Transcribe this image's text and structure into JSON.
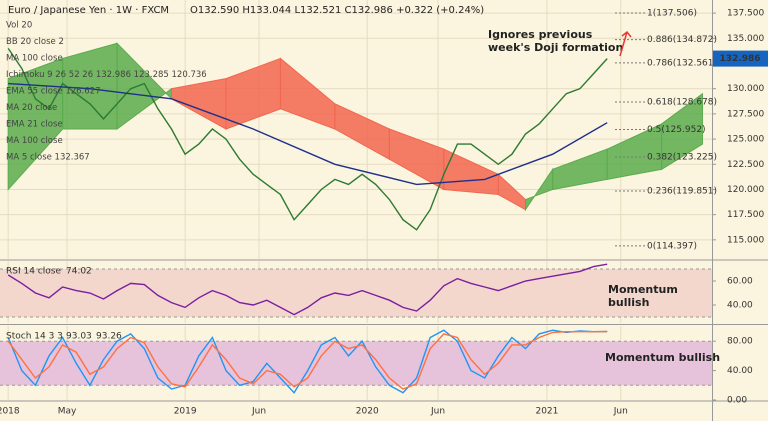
{
  "header": {
    "title": "Euro / Japanese Yen · 1W · FXCM",
    "ohlc": "O132.590 H133.044 L132.521 C132.986 +0.322 (+0.24%)",
    "indicators": [
      "Vol 20",
      "BB 20 close 2",
      "MA 100 close",
      "Ichimoku 9 26 52 26  132.986  123.285  120.736",
      "EMA 55 close  126.627",
      "MA 20 close",
      "EMA 21 close",
      "MA 100 close",
      "MA 5 close  132.367"
    ]
  },
  "chart_data": [
    {
      "type": "line",
      "annotation_lines": [
        "Ignores previous",
        "week's Doji formation"
      ],
      "xlim": [
        -2.4,
        206.8
      ],
      "ylim": [
        113.1,
        138.8
      ],
      "grid": true,
      "yticks": [
        {
          "value": 115,
          "label": "115.000"
        },
        {
          "value": 117.5,
          "label": "117.500"
        },
        {
          "value": 120,
          "label": "120.000"
        },
        {
          "value": 122.5,
          "label": "122.500"
        },
        {
          "value": 125,
          "label": "125.000"
        },
        {
          "value": 127.5,
          "label": "127.500"
        },
        {
          "value": 130,
          "label": "130.000"
        },
        {
          "value": 135,
          "label": "135.000"
        },
        {
          "value": 137.5,
          "label": "137.500"
        }
      ],
      "cloud": {
        "x": [
          0,
          16,
          32,
          48,
          64,
          80,
          96,
          112,
          128,
          144,
          152,
          160,
          176,
          192,
          204
        ],
        "span_a": [
          131,
          133,
          134.5,
          129,
          126,
          128,
          126,
          123,
          120,
          119.5,
          118,
          122,
          124,
          126.5,
          129.5
        ],
        "span_b": [
          120,
          126,
          126,
          130,
          131,
          133,
          128.5,
          126,
          124,
          121.5,
          119,
          120,
          121,
          122,
          124.5
        ],
        "colors": [
          "#5aac4e",
          "#f2664f"
        ]
      },
      "series": [
        {
          "color": "#2c7a33",
          "x": [
            0,
            4,
            8,
            12,
            16,
            20,
            24,
            28,
            32,
            36,
            40,
            44,
            48,
            52,
            56,
            60,
            64,
            68,
            72,
            76,
            80,
            84,
            88,
            92,
            96,
            100,
            104,
            108,
            112,
            116,
            120,
            124,
            128,
            132,
            136,
            140,
            144,
            148,
            152,
            156,
            160,
            164,
            168,
            172,
            176
          ],
          "values": [
            134,
            132,
            129,
            128,
            130.5,
            129.5,
            128.5,
            127,
            128.5,
            130,
            130.5,
            128,
            126,
            123.5,
            124.5,
            126,
            125,
            123,
            121.5,
            120.5,
            119.5,
            117,
            118.5,
            120,
            121,
            120.5,
            121.5,
            120.5,
            119,
            117,
            116,
            118,
            121.5,
            124.5,
            124.5,
            123.5,
            122.5,
            123.5,
            125.5,
            126.5,
            128,
            129.5,
            130,
            131.5,
            132.986
          ]
        },
        {
          "color": "#1f2f8a",
          "x": [
            0,
            24,
            48,
            72,
            96,
            120,
            140,
            160,
            176
          ],
          "values": [
            130.5,
            130,
            129,
            126,
            122.5,
            120.5,
            121,
            123.5,
            126.627
          ]
        }
      ],
      "levels": [
        {
          "value": 137.506,
          "label": "1(137.506)"
        },
        {
          "value": 134.872,
          "label": "0.886(134.872)"
        },
        {
          "value": 132.561,
          "label": "0.786(132.561)"
        },
        {
          "value": 128.678,
          "label": "0.618(128.678)"
        },
        {
          "value": 125.952,
          "label": "0.5(125.952)"
        },
        {
          "value": 123.225,
          "label": "0.382(123.225)"
        },
        {
          "value": 119.851,
          "label": "0.236(119.851)"
        },
        {
          "value": 114.397,
          "label": "0(114.397)"
        }
      ]
    },
    {
      "type": "line",
      "title": "RSI 14 close",
      "annotation_lines": [
        "Momentum",
        "bullish"
      ],
      "xlim": [
        -2.4,
        206.8
      ],
      "ylim": [
        25,
        76.7
      ],
      "band": [
        30,
        70
      ],
      "band_color": "#f3d6cc",
      "yticks": [
        {
          "value": 40,
          "label": "40.00"
        },
        {
          "value": 60,
          "label": "60.00"
        }
      ],
      "series": [
        {
          "color": "#7b1fa2",
          "x": [
            0,
            4,
            8,
            12,
            16,
            20,
            24,
            28,
            32,
            36,
            40,
            44,
            48,
            52,
            56,
            60,
            64,
            68,
            72,
            76,
            80,
            84,
            88,
            92,
            96,
            100,
            104,
            108,
            112,
            116,
            120,
            124,
            128,
            132,
            136,
            140,
            144,
            148,
            152,
            156,
            160,
            164,
            168,
            172,
            176
          ],
          "values": [
            65,
            58,
            50,
            46,
            55,
            52,
            50,
            45,
            52,
            58,
            57,
            48,
            42,
            38,
            46,
            52,
            48,
            42,
            40,
            44,
            38,
            32,
            38,
            46,
            50,
            48,
            52,
            48,
            44,
            38,
            35,
            44,
            56,
            62,
            58,
            55,
            52,
            56,
            60,
            62,
            64,
            66,
            68,
            72,
            74.02
          ]
        }
      ]
    },
    {
      "type": "line",
      "title": "Stoch 14 3 3",
      "annotation_lines": [
        "Momentum bullish"
      ],
      "xlim": [
        -2.4,
        206.8
      ],
      "ylim": [
        0,
        100.7
      ],
      "band": [
        20,
        80
      ],
      "band_color": "#e6c3db",
      "yticks": [
        {
          "value": 0,
          "label": "0.00"
        },
        {
          "value": 40,
          "label": "40.00"
        },
        {
          "value": 80,
          "label": "80.00"
        }
      ],
      "xticks": [
        {
          "value": 0,
          "label": "2018"
        },
        {
          "value": 17.3,
          "label": "May"
        },
        {
          "value": 52,
          "label": "2019"
        },
        {
          "value": 73.7,
          "label": "Jun"
        },
        {
          "value": 105.5,
          "label": "2020"
        },
        {
          "value": 126.3,
          "label": "Jun"
        },
        {
          "value": 158.3,
          "label": "2021"
        },
        {
          "value": 180,
          "label": "Jun"
        }
      ],
      "series": [
        {
          "color": "#2196f3",
          "x": [
            0,
            4,
            8,
            12,
            16,
            20,
            24,
            28,
            32,
            36,
            40,
            44,
            48,
            52,
            56,
            60,
            64,
            68,
            72,
            76,
            80,
            84,
            88,
            92,
            96,
            100,
            104,
            108,
            112,
            116,
            120,
            124,
            128,
            132,
            136,
            140,
            144,
            148,
            152,
            156,
            160,
            164,
            168,
            172,
            176
          ],
          "values": [
            85,
            40,
            20,
            60,
            85,
            50,
            20,
            55,
            80,
            90,
            70,
            30,
            15,
            20,
            60,
            85,
            40,
            20,
            25,
            50,
            30,
            10,
            40,
            75,
            85,
            60,
            80,
            45,
            20,
            10,
            30,
            85,
            95,
            80,
            40,
            30,
            60,
            85,
            70,
            90,
            95,
            92,
            94,
            93,
            93.03
          ]
        },
        {
          "color": "#ff7043",
          "x": [
            0,
            4,
            8,
            12,
            16,
            20,
            24,
            28,
            32,
            36,
            40,
            44,
            48,
            52,
            56,
            60,
            64,
            68,
            72,
            76,
            80,
            84,
            88,
            92,
            96,
            100,
            104,
            108,
            112,
            116,
            120,
            124,
            128,
            132,
            136,
            140,
            144,
            148,
            152,
            156,
            160,
            164,
            168,
            172,
            176
          ],
          "values": [
            80,
            55,
            30,
            45,
            75,
            65,
            35,
            45,
            70,
            85,
            78,
            45,
            22,
            18,
            45,
            75,
            55,
            30,
            22,
            40,
            35,
            18,
            30,
            60,
            80,
            70,
            75,
            55,
            30,
            15,
            22,
            70,
            90,
            85,
            55,
            35,
            50,
            75,
            75,
            85,
            92,
            93,
            93,
            93,
            93.26
          ]
        }
      ]
    }
  ]
}
